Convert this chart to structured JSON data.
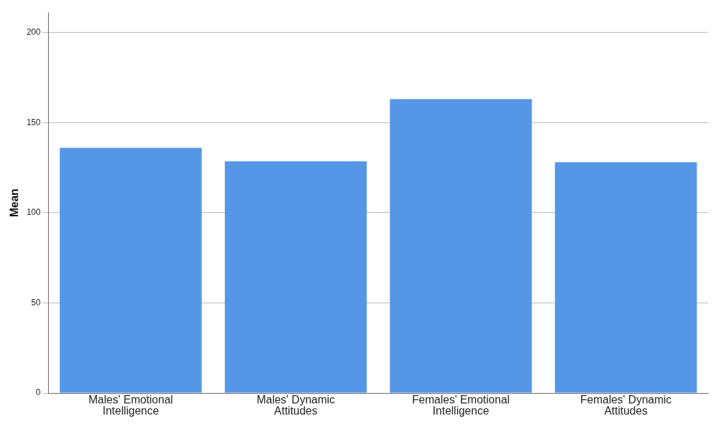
{
  "chart_data": {
    "type": "bar",
    "ylabel": "Mean",
    "categories": [
      "Males' Emotional Intelligence",
      "Males' Dynamic Attitudes",
      "Females' Emotional Intelligence",
      "Females' Dynamic Attitudes"
    ],
    "values": [
      136,
      128.5,
      163,
      128
    ],
    "color": "#5596e6",
    "ylim": [
      0,
      211
    ],
    "yticks": [
      0,
      50,
      100,
      150,
      200
    ],
    "grid": "y"
  }
}
